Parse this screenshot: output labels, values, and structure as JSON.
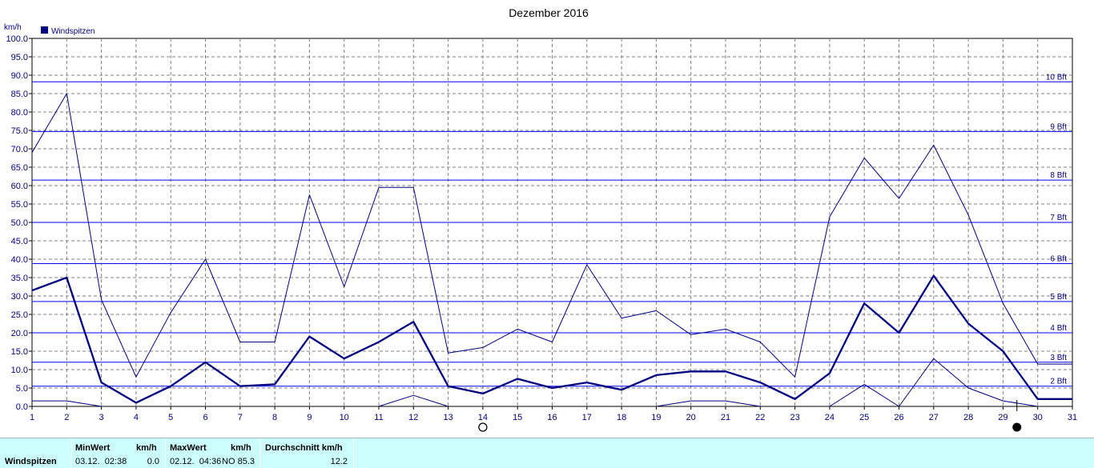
{
  "chart_data": {
    "type": "line",
    "title": "Dezember 2016",
    "ylabel": "km/h",
    "legend": "Windspitzen",
    "legend_position": "top-left",
    "colors": {
      "line": "#000080",
      "grid": "#808080",
      "axis_text": "#000080"
    },
    "x": [
      1,
      2,
      3,
      4,
      5,
      6,
      7,
      8,
      9,
      10,
      11,
      12,
      13,
      14,
      15,
      16,
      17,
      18,
      19,
      20,
      21,
      22,
      23,
      24,
      25,
      26,
      27,
      28,
      29,
      30,
      31
    ],
    "xlim": [
      1,
      31
    ],
    "ylim": [
      0,
      100
    ],
    "ytick_step": 5,
    "grid": true,
    "series": [
      {
        "name": "Windspitzen",
        "role": "avg",
        "values": [
          31.5,
          35,
          6.5,
          1,
          5.5,
          12,
          5.5,
          6,
          19,
          13,
          17.5,
          23,
          5.5,
          3.5,
          7.5,
          5,
          6.5,
          4.5,
          8.5,
          9.5,
          9.5,
          6.5,
          2,
          9,
          28,
          20,
          35.5,
          22.5,
          15,
          2,
          2
        ]
      },
      {
        "role": "max",
        "values": [
          69,
          85,
          29,
          8,
          25.5,
          40,
          17.5,
          17.5,
          57.5,
          32.5,
          59.5,
          59.5,
          14.5,
          16,
          21,
          17.5,
          38.5,
          24,
          26,
          19.5,
          21,
          17.5,
          8,
          51.5,
          67.5,
          56.5,
          71,
          52,
          28,
          11.5,
          11.5
        ]
      },
      {
        "role": "min",
        "values": [
          1.5,
          1.5,
          0,
          null,
          null,
          null,
          null,
          null,
          null,
          null,
          0,
          3,
          0,
          null,
          null,
          null,
          null,
          null,
          0,
          1.5,
          1.5,
          0,
          null,
          0,
          6,
          0,
          13,
          5,
          1.5,
          0,
          null
        ]
      }
    ],
    "beaufort_lines": [
      {
        "label": "2 Bft",
        "value": 5.5
      },
      {
        "label": "3 Bft",
        "value": 12
      },
      {
        "label": "4 Bft",
        "value": 20
      },
      {
        "label": "5 Bft",
        "value": 28.5
      },
      {
        "label": "6 Bft",
        "value": 38.8
      },
      {
        "label": "7 Bft",
        "value": 50
      },
      {
        "label": "8 Bft",
        "value": 61.5
      },
      {
        "label": "9 Bft",
        "value": 74.7
      },
      {
        "label": "10 Bft",
        "value": 88.2
      }
    ],
    "moon_markers": [
      {
        "phase": "full",
        "x": 14
      },
      {
        "phase": "new",
        "x": 29.4
      }
    ]
  },
  "stats": {
    "row_label": "Windspitzen",
    "min": {
      "header": "MinWert",
      "unit": "km/h",
      "time": "03.12.  02:38",
      "value": "0.0"
    },
    "max": {
      "header": "MaxWert",
      "unit": "km/h",
      "time": "02.12.  04:36",
      "direction": "NO",
      "value": "85.3"
    },
    "avg": {
      "header": "Durchschnitt km/h",
      "value": "12.2"
    }
  }
}
